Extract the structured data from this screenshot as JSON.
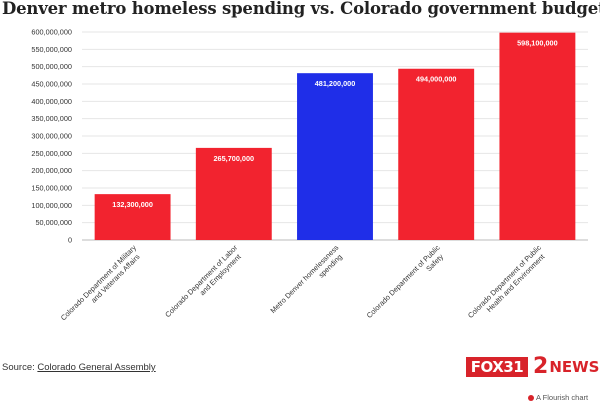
{
  "chart_data": {
    "type": "bar",
    "title": "Denver metro homeless spending vs. Colorado government budgets",
    "xlabel": "",
    "ylabel": "",
    "ylim": [
      0,
      600000000
    ],
    "yticks": [
      0,
      50000000,
      100000000,
      150000000,
      200000000,
      250000000,
      300000000,
      350000000,
      400000000,
      450000000,
      500000000,
      550000000,
      600000000
    ],
    "ytick_labels": [
      "0",
      "50,000,000",
      "100,000,000",
      "150,000,000",
      "200,000,000",
      "250,000,000",
      "300,000,000",
      "350,000,000",
      "400,000,000",
      "450,000,000",
      "500,000,000",
      "550,000,000",
      "600,000,000"
    ],
    "categories": [
      "Colorado Department of Military and Veterans Affairs",
      "Colorado Department of Labor and Employment",
      "Metro Denver homelessness spending",
      "Colorado Department of Public Safety",
      "Colorado Department of Public Health and Environment"
    ],
    "category_lines": [
      [
        "Colorado Department of Military",
        "and Veterans Affairs"
      ],
      [
        "Colorado Department of Labor",
        "and Employment"
      ],
      [
        "Metro Denver homelessness",
        "spending"
      ],
      [
        "Colorado Department of Public",
        "Safety"
      ],
      [
        "Colorado Department of Public",
        "Health and Environment"
      ]
    ],
    "values": [
      132300000,
      265700000,
      481200000,
      494000000,
      598100000
    ],
    "value_labels": [
      "132,300,000",
      "265,700,000",
      "481,200,000",
      "494,000,000",
      "598,100,000"
    ],
    "colors": [
      "#f2232f",
      "#f2232f",
      "#1f2ee8",
      "#f2232f",
      "#f2232f"
    ],
    "grid": true,
    "legend": "none"
  },
  "footer": {
    "source_label": "Source:",
    "source_link": "Colorado General Assembly",
    "logo_fox": "FOX31",
    "logo_two_num": "2",
    "logo_two_word": "NEWS",
    "flourish_credit": "A Flourish chart"
  }
}
